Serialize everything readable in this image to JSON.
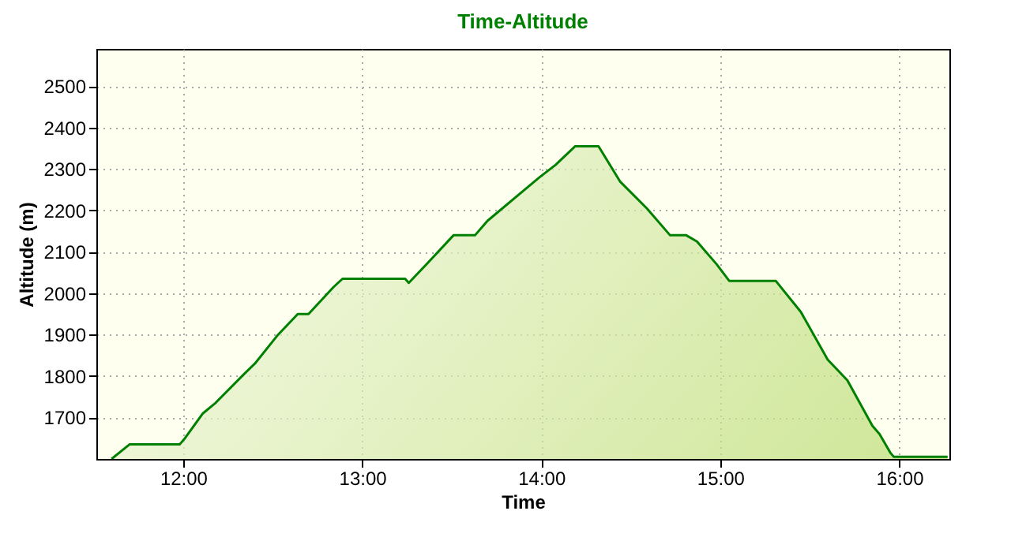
{
  "chart_data": {
    "type": "area",
    "title": "Time-Altitude",
    "xlabel": "Time",
    "ylabel": "Altitude (m)",
    "x": [
      11.6,
      11.7,
      11.98,
      12.01,
      12.11,
      12.18,
      12.34,
      12.4,
      12.53,
      12.64,
      12.7,
      12.84,
      12.89,
      13.24,
      13.26,
      13.37,
      13.51,
      13.55,
      13.63,
      13.7,
      13.99,
      14.08,
      14.19,
      14.32,
      14.44,
      14.59,
      14.72,
      14.81,
      14.87,
      14.98,
      15.05,
      15.31,
      15.45,
      15.6,
      15.71,
      15.85,
      15.89,
      15.95,
      15.97,
      16.27
    ],
    "series": [
      {
        "color": "#008000",
        "values": [
          1600,
          1635,
          1635,
          1650,
          1710,
          1735,
          1805,
          1830,
          1900,
          1950,
          1950,
          2015,
          2035,
          2035,
          2025,
          2075,
          2140,
          2140,
          2140,
          2175,
          2280,
          2310,
          2355,
          2355,
          2270,
          2205,
          2140,
          2140,
          2125,
          2070,
          2030,
          2030,
          1955,
          1840,
          1790,
          1680,
          1660,
          1615,
          1605,
          1605
        ]
      }
    ],
    "xlim": [
      11.515,
      16.28
    ],
    "ylim": [
      1600,
      2590
    ],
    "xticks": [
      {
        "value": 12,
        "label": "12:00"
      },
      {
        "value": 13,
        "label": "13:00"
      },
      {
        "value": 14,
        "label": "14:00"
      },
      {
        "value": 15,
        "label": "15:00"
      },
      {
        "value": 16,
        "label": "16:00"
      }
    ],
    "yticks": [
      1700,
      1800,
      1900,
      2000,
      2100,
      2200,
      2300,
      2400,
      2500
    ],
    "grid": true
  }
}
